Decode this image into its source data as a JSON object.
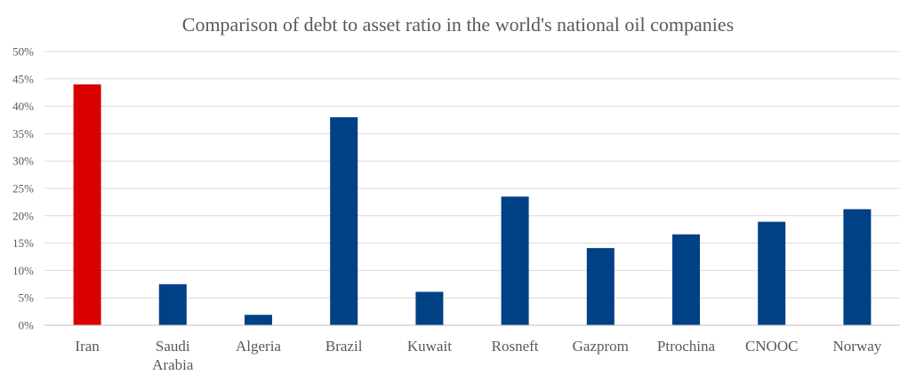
{
  "chart_data": {
    "type": "bar",
    "title": "Comparison of debt to asset ratio in the world's national oil companies",
    "xlabel": "",
    "ylabel": "",
    "categories": [
      "Iran",
      "Saudi Arabia",
      "Algeria",
      "Brazil",
      "Kuwait",
      "Rosneft",
      "Gazprom",
      "Ptrochina",
      "CNOOC",
      "Norway"
    ],
    "category_lines": [
      [
        "Iran"
      ],
      [
        "Saudi",
        "Arabia"
      ],
      [
        "Algeria"
      ],
      [
        "Brazil"
      ],
      [
        "Kuwait"
      ],
      [
        "Rosneft"
      ],
      [
        "Gazprom"
      ],
      [
        "Ptrochina"
      ],
      [
        "CNOOC"
      ],
      [
        "Norway"
      ]
    ],
    "values": [
      44,
      7.5,
      1.9,
      38,
      6.1,
      23.5,
      14.1,
      16.6,
      18.9,
      21.2
    ],
    "ylim": [
      0,
      50
    ],
    "yticks": [
      0,
      5,
      10,
      15,
      20,
      25,
      30,
      35,
      40,
      45,
      50
    ],
    "ytick_labels": [
      "0%",
      "5%",
      "10%",
      "15%",
      "20%",
      "25%",
      "30%",
      "35%",
      "40%",
      "45%",
      "50%"
    ],
    "grid": true,
    "legend": "none",
    "colors": {
      "default_bar": "#004085",
      "highlight_bar": "#d90000",
      "highlight_index": 0,
      "text": "#595959",
      "grid": "#d9d9d9"
    }
  }
}
